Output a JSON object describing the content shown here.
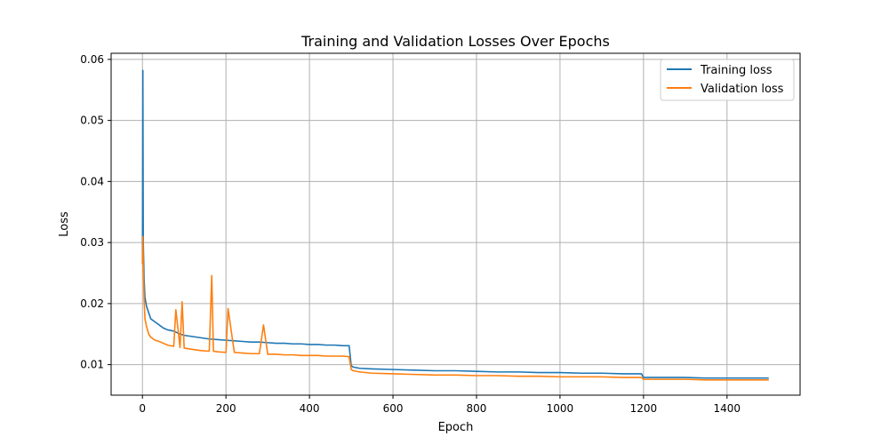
{
  "chart_data": {
    "type": "line",
    "title": "Training and Validation Losses Over Epochs",
    "xlabel": "Epoch",
    "ylabel": "Loss",
    "xlim": [
      -75,
      1575
    ],
    "ylim": [
      0.005,
      0.061
    ],
    "xticks": [
      0,
      200,
      400,
      600,
      800,
      1000,
      1200,
      1400
    ],
    "yticks": [
      0.01,
      0.02,
      0.03,
      0.04,
      0.05,
      0.06
    ],
    "xtick_labels": [
      "0",
      "200",
      "400",
      "600",
      "800",
      "1000",
      "1200",
      "1400"
    ],
    "ytick_labels": [
      "0.01",
      "0.02",
      "0.03",
      "0.04",
      "0.05",
      "0.06"
    ],
    "grid": true,
    "legend_position": "top-right",
    "series": [
      {
        "name": "Training loss",
        "color": "#1f77b4",
        "x": [
          0,
          1,
          2,
          4,
          6,
          10,
          15,
          20,
          30,
          40,
          50,
          60,
          75,
          90,
          100,
          120,
          140,
          160,
          180,
          200,
          220,
          240,
          260,
          280,
          300,
          320,
          340,
          360,
          380,
          400,
          420,
          440,
          460,
          480,
          495,
          500,
          505,
          520,
          550,
          600,
          650,
          700,
          750,
          800,
          850,
          900,
          950,
          1000,
          1050,
          1100,
          1150,
          1195,
          1200,
          1210,
          1250,
          1300,
          1350,
          1400,
          1450,
          1500
        ],
        "y": [
          0.0265,
          0.0582,
          0.03,
          0.024,
          0.021,
          0.0195,
          0.0185,
          0.0175,
          0.017,
          0.0165,
          0.016,
          0.0157,
          0.0155,
          0.015,
          0.0148,
          0.0146,
          0.0144,
          0.0142,
          0.0141,
          0.014,
          0.0139,
          0.0138,
          0.0137,
          0.0137,
          0.0136,
          0.0135,
          0.0135,
          0.0134,
          0.0134,
          0.0133,
          0.0133,
          0.0132,
          0.0132,
          0.0131,
          0.0131,
          0.0098,
          0.0096,
          0.0094,
          0.0093,
          0.0092,
          0.0091,
          0.009,
          0.009,
          0.0089,
          0.0088,
          0.0088,
          0.0087,
          0.0087,
          0.0086,
          0.0086,
          0.0085,
          0.0085,
          0.0079,
          0.0079,
          0.0079,
          0.0079,
          0.0078,
          0.0078,
          0.0078,
          0.0078
        ]
      },
      {
        "name": "Validation loss",
        "color": "#ff7f0e",
        "x": [
          0,
          1,
          2,
          4,
          6,
          10,
          15,
          20,
          30,
          40,
          50,
          60,
          75,
          80,
          90,
          95,
          100,
          120,
          140,
          160,
          166,
          170,
          180,
          200,
          205,
          220,
          240,
          260,
          280,
          290,
          300,
          320,
          340,
          360,
          380,
          400,
          420,
          440,
          460,
          480,
          495,
          500,
          505,
          520,
          550,
          600,
          650,
          700,
          750,
          800,
          850,
          900,
          950,
          1000,
          1050,
          1100,
          1150,
          1195,
          1200,
          1210,
          1250,
          1300,
          1350,
          1400,
          1450,
          1500
        ],
        "y": [
          0.0265,
          0.031,
          0.0262,
          0.0205,
          0.0175,
          0.0162,
          0.015,
          0.0145,
          0.014,
          0.0138,
          0.0135,
          0.0132,
          0.013,
          0.019,
          0.0128,
          0.0203,
          0.0127,
          0.0125,
          0.0123,
          0.0122,
          0.0246,
          0.0122,
          0.0121,
          0.012,
          0.0192,
          0.012,
          0.0119,
          0.0118,
          0.0118,
          0.0165,
          0.0117,
          0.0117,
          0.0116,
          0.0116,
          0.0115,
          0.0115,
          0.0115,
          0.0114,
          0.0114,
          0.0114,
          0.0113,
          0.0092,
          0.009,
          0.0088,
          0.0086,
          0.0085,
          0.0084,
          0.0083,
          0.0083,
          0.0082,
          0.0082,
          0.0081,
          0.0081,
          0.008,
          0.008,
          0.008,
          0.0079,
          0.0079,
          0.0076,
          0.0076,
          0.0076,
          0.0076,
          0.0075,
          0.0075,
          0.0075,
          0.0075
        ]
      }
    ]
  }
}
